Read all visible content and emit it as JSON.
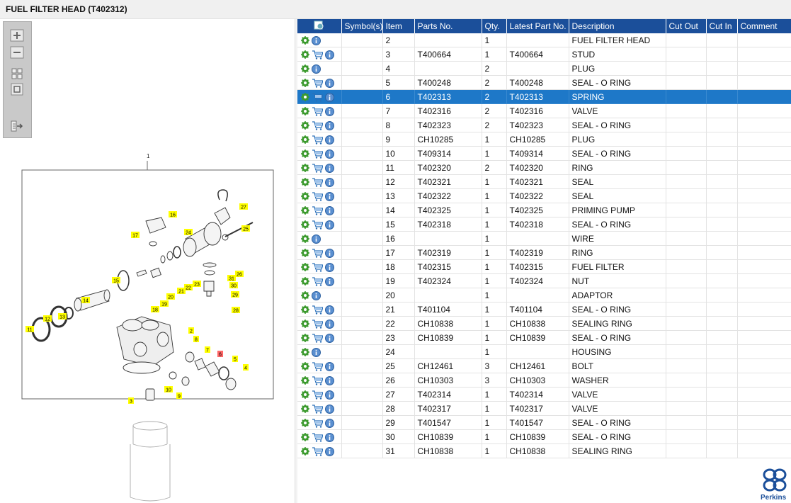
{
  "window": {
    "title": "FUEL FILTER HEAD (T402312)"
  },
  "toolbar": {
    "zoom_in_icon": "zoom-in-icon",
    "zoom_out_icon": "zoom-out-icon",
    "fit_icon": "fit-page-icon",
    "actual_size_icon": "actual-size-icon",
    "export_icon": "export-icon"
  },
  "diagram": {
    "frame_label": "1",
    "callouts": [
      "2",
      "3",
      "4",
      "5",
      "6",
      "7",
      "8",
      "9",
      "10",
      "11",
      "12",
      "13",
      "14",
      "15",
      "16",
      "17",
      "18",
      "19",
      "20",
      "21",
      "22",
      "23",
      "24",
      "25",
      "26",
      "27",
      "28",
      "29",
      "30",
      "31"
    ],
    "highlighted": "6"
  },
  "table": {
    "columns": [
      "Symbol(s)",
      "Item",
      "Parts No.",
      "Qty.",
      "Latest Part No.",
      "Description",
      "Cut Out",
      "Cut In",
      "Comment"
    ],
    "selected_item": "6",
    "rows": [
      {
        "item": "2",
        "part": "",
        "qty": "1",
        "latest": "",
        "desc": "FUEL FILTER HEAD",
        "cart": false
      },
      {
        "item": "3",
        "part": "T400664",
        "qty": "1",
        "latest": "T400664",
        "desc": "STUD",
        "cart": true
      },
      {
        "item": "4",
        "part": "",
        "qty": "2",
        "latest": "",
        "desc": "PLUG",
        "cart": false
      },
      {
        "item": "5",
        "part": "T400248",
        "qty": "2",
        "latest": "T400248",
        "desc": "SEAL - O RING",
        "cart": true
      },
      {
        "item": "6",
        "part": "T402313",
        "qty": "2",
        "latest": "T402313",
        "desc": "SPRING",
        "cart": true
      },
      {
        "item": "7",
        "part": "T402316",
        "qty": "2",
        "latest": "T402316",
        "desc": "VALVE",
        "cart": true
      },
      {
        "item": "8",
        "part": "T402323",
        "qty": "2",
        "latest": "T402323",
        "desc": "SEAL - O RING",
        "cart": true
      },
      {
        "item": "9",
        "part": "CH10285",
        "qty": "1",
        "latest": "CH10285",
        "desc": "PLUG",
        "cart": true
      },
      {
        "item": "10",
        "part": "T409314",
        "qty": "1",
        "latest": "T409314",
        "desc": "SEAL - O RING",
        "cart": true
      },
      {
        "item": "11",
        "part": "T402320",
        "qty": "2",
        "latest": "T402320",
        "desc": "RING",
        "cart": true
      },
      {
        "item": "12",
        "part": "T402321",
        "qty": "1",
        "latest": "T402321",
        "desc": "SEAL",
        "cart": true
      },
      {
        "item": "13",
        "part": "T402322",
        "qty": "1",
        "latest": "T402322",
        "desc": "SEAL",
        "cart": true
      },
      {
        "item": "14",
        "part": "T402325",
        "qty": "1",
        "latest": "T402325",
        "desc": "PRIMING PUMP",
        "cart": true
      },
      {
        "item": "15",
        "part": "T402318",
        "qty": "1",
        "latest": "T402318",
        "desc": "SEAL - O RING",
        "cart": true
      },
      {
        "item": "16",
        "part": "",
        "qty": "1",
        "latest": "",
        "desc": "WIRE",
        "cart": false
      },
      {
        "item": "17",
        "part": "T402319",
        "qty": "1",
        "latest": "T402319",
        "desc": "RING",
        "cart": true
      },
      {
        "item": "18",
        "part": "T402315",
        "qty": "1",
        "latest": "T402315",
        "desc": "FUEL FILTER",
        "cart": true
      },
      {
        "item": "19",
        "part": "T402324",
        "qty": "1",
        "latest": "T402324",
        "desc": "NUT",
        "cart": true
      },
      {
        "item": "20",
        "part": "",
        "qty": "1",
        "latest": "",
        "desc": "ADAPTOR",
        "cart": false
      },
      {
        "item": "21",
        "part": "T401104",
        "qty": "1",
        "latest": "T401104",
        "desc": "SEAL - O RING",
        "cart": true
      },
      {
        "item": "22",
        "part": "CH10838",
        "qty": "1",
        "latest": "CH10838",
        "desc": "SEALING RING",
        "cart": true
      },
      {
        "item": "23",
        "part": "CH10839",
        "qty": "1",
        "latest": "CH10839",
        "desc": "SEAL - O RING",
        "cart": true
      },
      {
        "item": "24",
        "part": "",
        "qty": "1",
        "latest": "",
        "desc": "HOUSING",
        "cart": false
      },
      {
        "item": "25",
        "part": "CH12461",
        "qty": "3",
        "latest": "CH12461",
        "desc": "BOLT",
        "cart": true
      },
      {
        "item": "26",
        "part": "CH10303",
        "qty": "3",
        "latest": "CH10303",
        "desc": "WASHER",
        "cart": true
      },
      {
        "item": "27",
        "part": "T402314",
        "qty": "1",
        "latest": "T402314",
        "desc": "VALVE",
        "cart": true
      },
      {
        "item": "28",
        "part": "T402317",
        "qty": "1",
        "latest": "T402317",
        "desc": "VALVE",
        "cart": true
      },
      {
        "item": "29",
        "part": "T401547",
        "qty": "1",
        "latest": "T401547",
        "desc": "SEAL - O RING",
        "cart": true
      },
      {
        "item": "30",
        "part": "CH10839",
        "qty": "1",
        "latest": "CH10839",
        "desc": "SEAL - O RING",
        "cart": true
      },
      {
        "item": "31",
        "part": "CH10838",
        "qty": "1",
        "latest": "CH10838",
        "desc": "SEALING RING",
        "cart": true
      }
    ]
  },
  "branding": {
    "logo_text": "Perkins",
    "accent": "#1b4f9a",
    "selection": "#1e78c8",
    "callout_yellow": "#ffff00",
    "callout_red": "#ff6666"
  }
}
